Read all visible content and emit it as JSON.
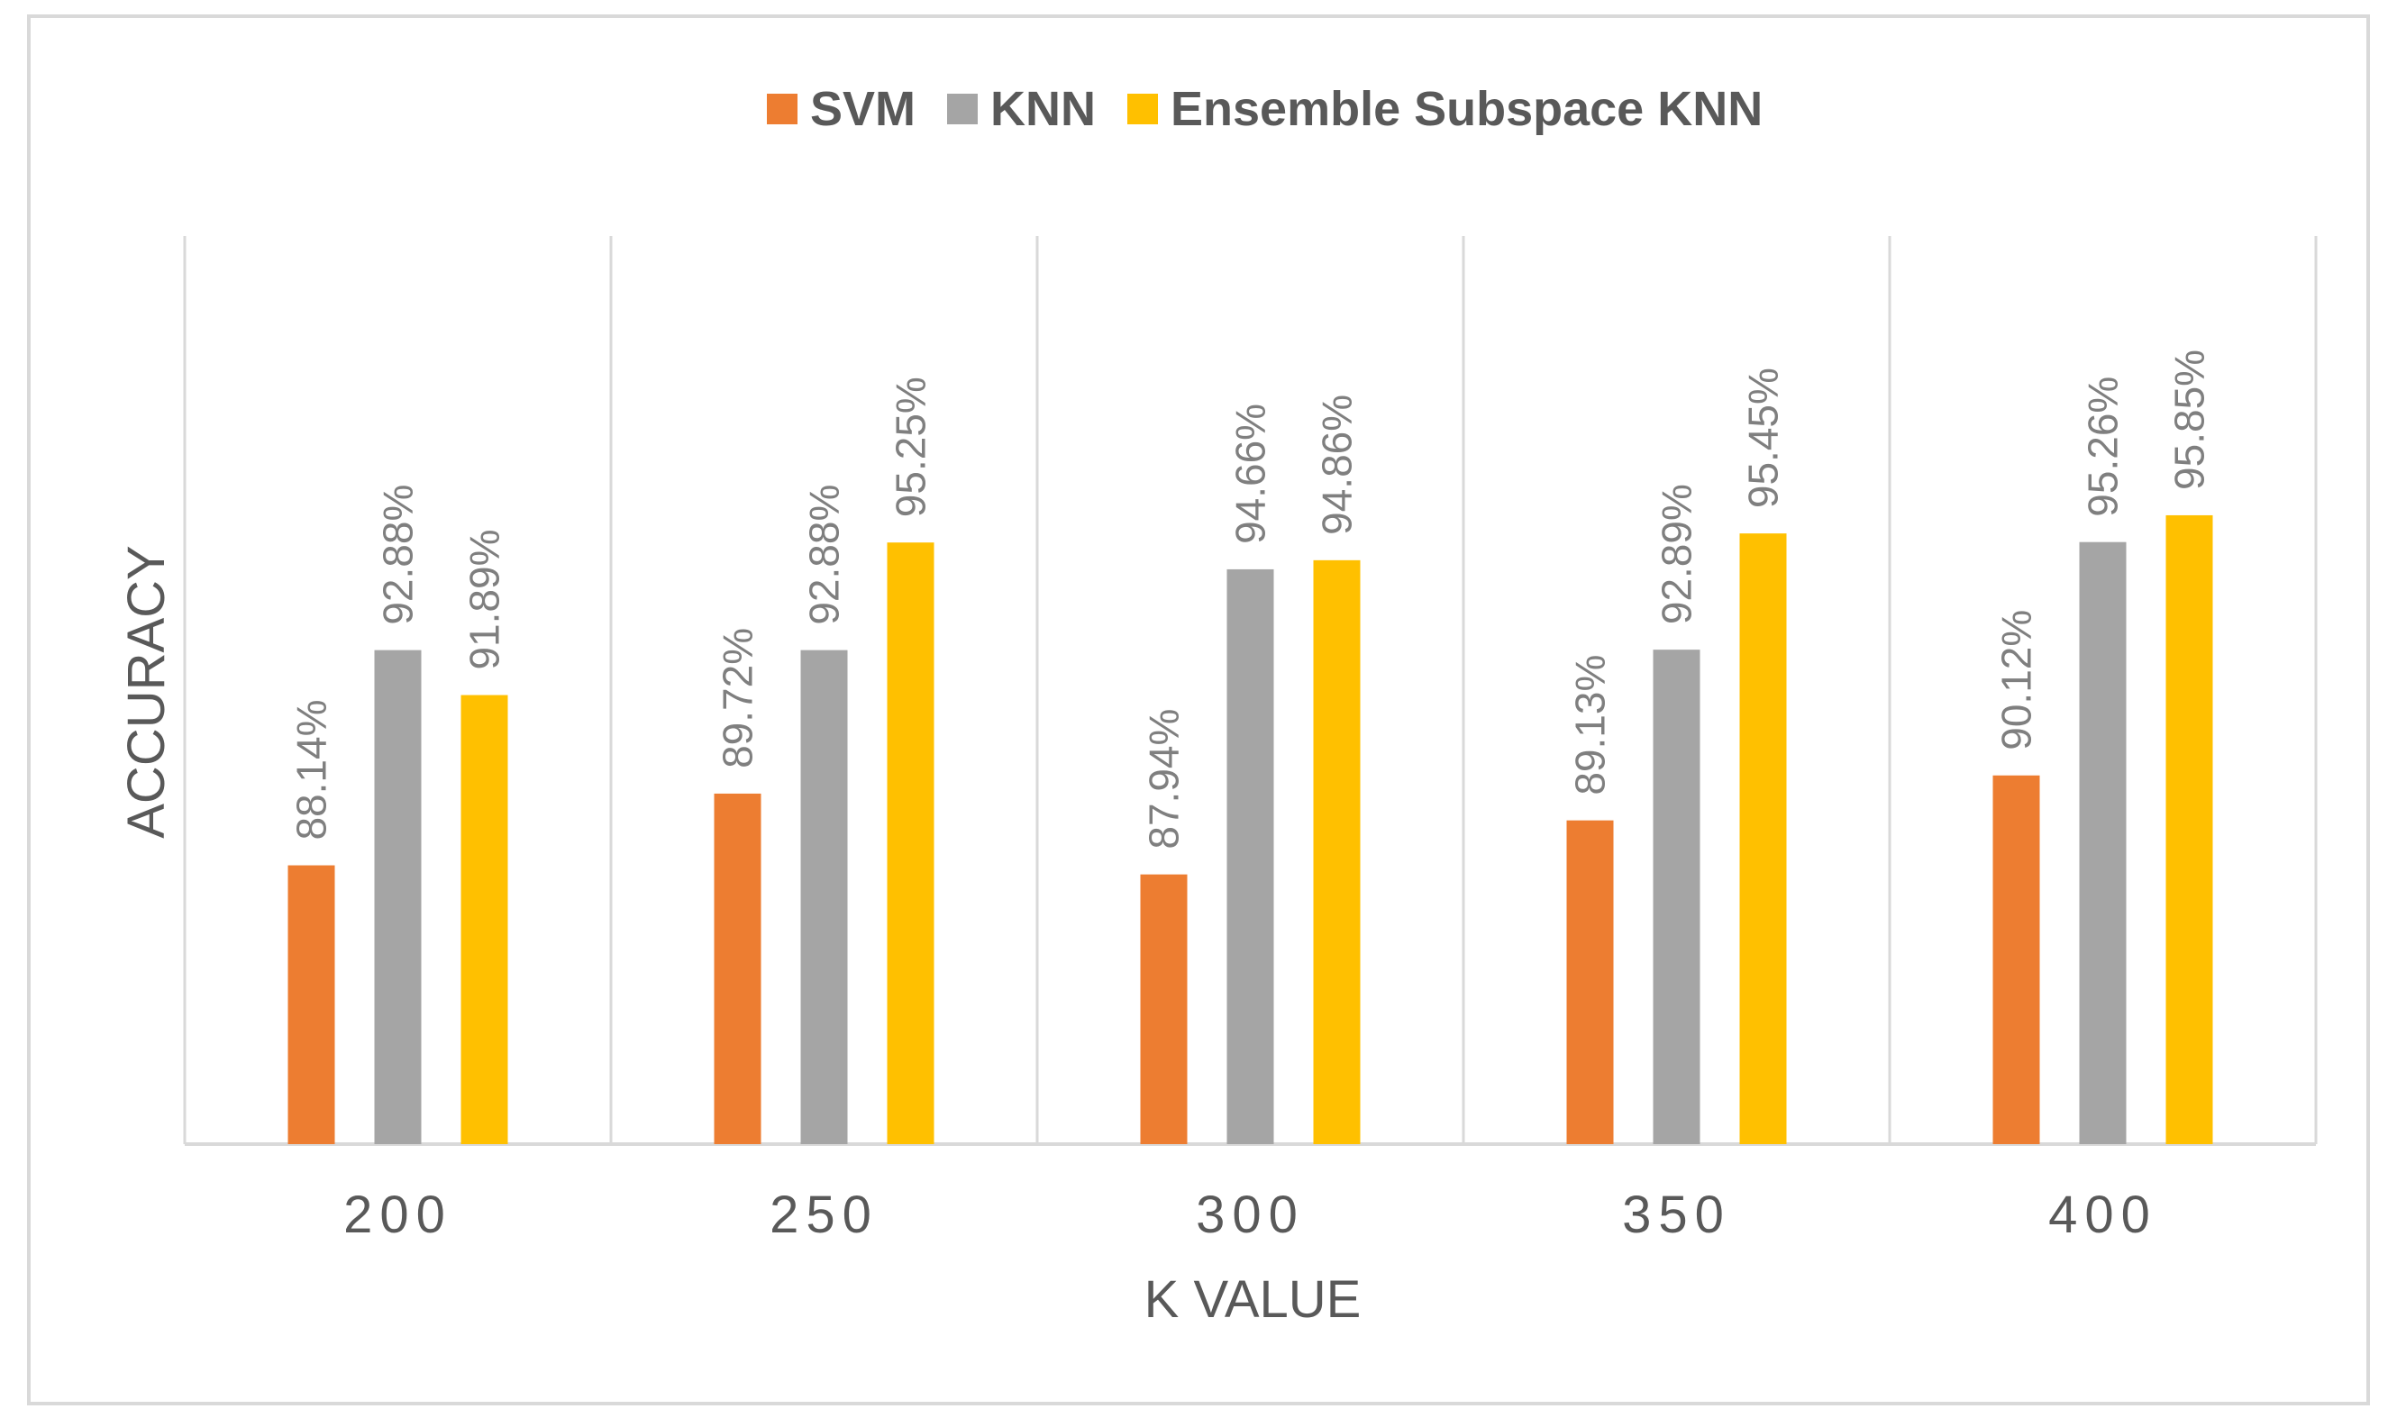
{
  "chart_data": {
    "type": "bar",
    "title": "",
    "xlabel": "K VALUE",
    "ylabel": "ACCURACY",
    "categories": [
      "200",
      "250",
      "300",
      "350",
      "400"
    ],
    "series": [
      {
        "name": "SVM",
        "color": "#ED7D31",
        "values": [
          88.14,
          89.72,
          87.94,
          89.13,
          90.12
        ],
        "labels": [
          "88.14%",
          "89.72%",
          "87.94%",
          "89.13%",
          "90.12%"
        ]
      },
      {
        "name": "KNN",
        "color": "#A5A5A5",
        "values": [
          92.88,
          92.88,
          94.66,
          92.89,
          95.26
        ],
        "labels": [
          "92.88%",
          "92.88%",
          "94.66%",
          "92.89%",
          "95.26%"
        ]
      },
      {
        "name": "Ensemble Subspace KNN",
        "color": "#FFC000",
        "values": [
          91.89,
          95.25,
          94.86,
          95.45,
          95.85
        ],
        "labels": [
          "91.89%",
          "95.25%",
          "94.86%",
          "95.45%",
          "95.85%"
        ]
      }
    ],
    "ylim": [
      82,
      102
    ],
    "grid": "vertical-category-separators",
    "legend": "top-center"
  }
}
